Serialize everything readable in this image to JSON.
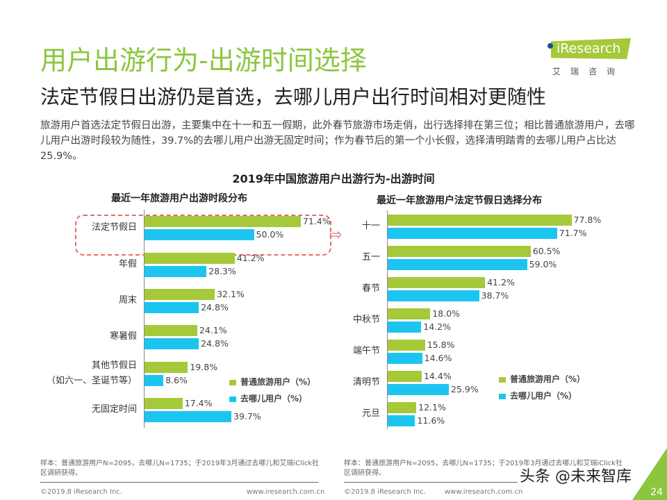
{
  "header": {
    "title": "用户出游行为-出游时间选择",
    "subtitle": "法定节假日出游仍是首选，去哪儿用户出行时间相对更随性",
    "description": "旅游用户首选法定节假日出游，主要集中在十一和五一假期，此外春节旅游市场走俏，出行选择排在第三位；相比普通旅游用户，去哪儿用户出游时段较为随性，39.7%的去哪儿用户出游无固定时间；作为春节后的第一个小长假，选择清明踏青的去哪儿用户占比达25.9%。"
  },
  "logo": {
    "text": "iResearch",
    "sub": "艾瑞咨询"
  },
  "colors": {
    "green": "#a6c93a",
    "blue": "#1cc5f0",
    "title": "#8cc63e"
  },
  "main_title": "2019年中国旅游用户出游行为-出游时间",
  "chart_data": [
    {
      "type": "bar",
      "orientation": "horizontal",
      "title": "最近一年旅游用户出游时段分布",
      "categories": [
        "法定节假日",
        "年假",
        "周末",
        "寒暑假",
        "其他节假日\n（如六一、圣诞节等）",
        "无固定时间"
      ],
      "series": [
        {
          "name": "普通旅游用户（%）",
          "values": [
            71.4,
            41.2,
            32.1,
            24.1,
            19.8,
            17.4
          ]
        },
        {
          "name": "去哪儿用户（%）",
          "values": [
            50.0,
            28.3,
            24.8,
            24.8,
            8.6,
            39.7
          ]
        }
      ],
      "highlight": "法定节假日"
    },
    {
      "type": "bar",
      "orientation": "horizontal",
      "title": "最近一年旅游用户法定节假日选择分布",
      "categories": [
        "十一",
        "五一",
        "春节",
        "中秋节",
        "端午节",
        "清明节",
        "元旦"
      ],
      "series": [
        {
          "name": "普通旅游用户（%）",
          "values": [
            77.8,
            60.5,
            41.2,
            18.0,
            15.8,
            14.4,
            12.1
          ]
        },
        {
          "name": "去哪儿用户（%）",
          "values": [
            71.7,
            59.0,
            38.7,
            14.2,
            14.6,
            25.9,
            11.6
          ]
        }
      ]
    }
  ],
  "footer": {
    "note": "样本：普通旅游用户N=2095，去哪儿N=1735；于2019年3月通过去哪儿和艾瑞iClick社区调研获得。",
    "copyright": "©2019.8 iResearch Inc.",
    "url": "www.iresearch.com.cn",
    "page": "24",
    "watermark": "头条 @未来智库"
  }
}
